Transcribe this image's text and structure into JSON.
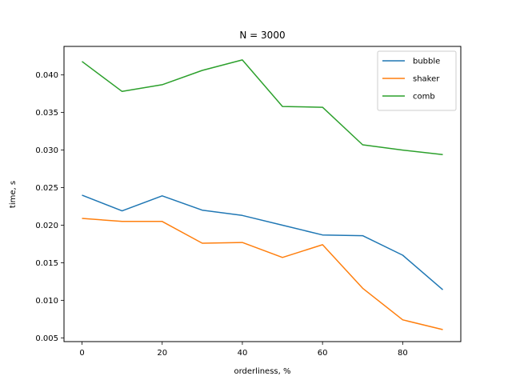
{
  "chart_data": {
    "type": "line",
    "title": "N = 3000",
    "xlabel": "orderliness, %",
    "ylabel": "time, s",
    "xlim": [
      -4.5,
      94.5
    ],
    "ylim": [
      0.0045,
      0.0438
    ],
    "x_ticks": [
      0,
      20,
      40,
      60,
      80
    ],
    "x_tick_labels": [
      "0",
      "20",
      "40",
      "60",
      "80"
    ],
    "y_ticks": [
      0.005,
      0.01,
      0.015,
      0.02,
      0.025,
      0.03,
      0.035,
      0.04
    ],
    "y_tick_labels": [
      "0.005",
      "0.010",
      "0.015",
      "0.020",
      "0.025",
      "0.030",
      "0.035",
      "0.040"
    ],
    "grid": false,
    "legend_position": "top-right",
    "x": [
      0,
      10,
      20,
      30,
      40,
      50,
      60,
      70,
      80,
      90
    ],
    "series": [
      {
        "name": "bubble",
        "color": "#1f77b4",
        "values": [
          0.024,
          0.0219,
          0.0239,
          0.022,
          0.0213,
          0.02,
          0.0187,
          0.0186,
          0.016,
          0.0114
        ]
      },
      {
        "name": "shaker",
        "color": "#ff7f0e",
        "values": [
          0.0209,
          0.0205,
          0.0205,
          0.0176,
          0.0177,
          0.0157,
          0.0174,
          0.0116,
          0.0074,
          0.0061
        ]
      },
      {
        "name": "comb",
        "color": "#2ca02c",
        "values": [
          0.0418,
          0.0378,
          0.0387,
          0.0406,
          0.042,
          0.0358,
          0.0357,
          0.0307,
          0.03,
          0.0294
        ]
      }
    ]
  }
}
